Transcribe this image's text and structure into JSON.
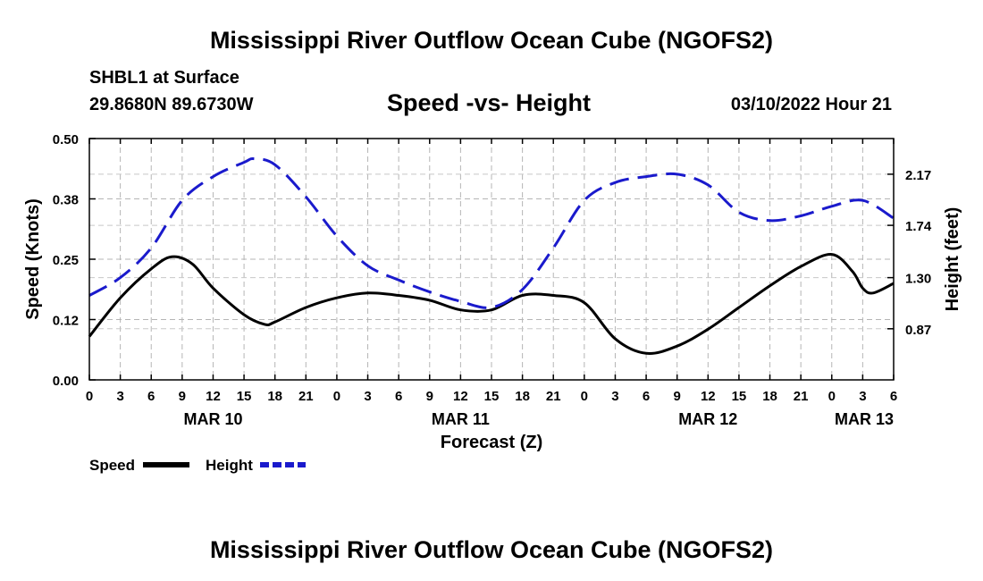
{
  "header": {
    "title": "Mississippi River Outflow Ocean Cube (NGOFS2)",
    "station": "SHBL1 at Surface",
    "location": "29.8680N  89.6730W",
    "subtitle": "Speed -vs- Height",
    "timestamp": "03/10/2022 Hour 21"
  },
  "footer": {
    "title": "Mississippi River Outflow Ocean Cube (NGOFS2)"
  },
  "chart_data": {
    "type": "line",
    "xlabel": "Forecast (Z)",
    "ylabel": "Speed (Knots)",
    "y2label": "Height (feet)",
    "x_unit": "hours since 03/10 00Z",
    "xlim": [
      0,
      78
    ],
    "ylim": [
      0,
      0.5
    ],
    "y2lim": [
      0.44,
      2.47
    ],
    "x_ticks": [
      0,
      3,
      6,
      9,
      12,
      15,
      18,
      21,
      24,
      27,
      30,
      33,
      36,
      39,
      42,
      45,
      48,
      51,
      54,
      57,
      60,
      63,
      66,
      69,
      72,
      75,
      78
    ],
    "x_tick_labels": [
      "0",
      "3",
      "6",
      "9",
      "12",
      "15",
      "18",
      "21",
      "0",
      "3",
      "6",
      "9",
      "12",
      "15",
      "18",
      "21",
      "0",
      "3",
      "6",
      "9",
      "12",
      "15",
      "18",
      "21",
      "0",
      "3",
      "6"
    ],
    "date_labels": [
      {
        "x": 12,
        "label": "MAR 10"
      },
      {
        "x": 36,
        "label": "MAR 11"
      },
      {
        "x": 60,
        "label": "MAR 12"
      },
      {
        "x": 78,
        "label": "MAR 13"
      }
    ],
    "y_ticks": [
      0,
      0.125,
      0.25,
      0.375,
      0.5
    ],
    "y_tick_labels": [
      "0.00",
      "0.12",
      "0.25",
      "0.38",
      "0.50"
    ],
    "y2_ticks": [
      0.87,
      1.3,
      1.74,
      2.17
    ],
    "y2_tick_labels": [
      "0.87",
      "1.30",
      "1.74",
      "2.17"
    ],
    "grid": true,
    "legend_position": "bottom-left",
    "series": [
      {
        "name": "Speed",
        "axis": "left",
        "color": "#000000",
        "style": "solid",
        "x": [
          0,
          3,
          6,
          8,
          10,
          12,
          15,
          17,
          18,
          21,
          24,
          27,
          30,
          33,
          36,
          39,
          42,
          45,
          48,
          51,
          54,
          57,
          60,
          63,
          66,
          69,
          72,
          74,
          75,
          76,
          78
        ],
        "values": [
          0.09,
          0.17,
          0.23,
          0.255,
          0.24,
          0.19,
          0.135,
          0.115,
          0.12,
          0.15,
          0.17,
          0.18,
          0.175,
          0.165,
          0.145,
          0.145,
          0.175,
          0.175,
          0.16,
          0.085,
          0.055,
          0.07,
          0.105,
          0.15,
          0.195,
          0.235,
          0.26,
          0.225,
          0.19,
          0.18,
          0.2
        ]
      },
      {
        "name": "Height",
        "axis": "right",
        "color": "#1a1acc",
        "style": "dashed",
        "x": [
          0,
          3,
          6,
          9,
          12,
          15,
          16,
          18,
          21,
          24,
          27,
          30,
          33,
          36,
          39,
          42,
          45,
          48,
          51,
          54,
          57,
          60,
          63,
          66,
          69,
          72,
          75,
          78
        ],
        "values": [
          1.15,
          1.3,
          1.55,
          1.95,
          2.15,
          2.27,
          2.3,
          2.25,
          1.98,
          1.65,
          1.4,
          1.28,
          1.18,
          1.1,
          1.05,
          1.2,
          1.55,
          1.95,
          2.1,
          2.15,
          2.17,
          2.08,
          1.85,
          1.78,
          1.82,
          1.9,
          1.95,
          1.8
        ]
      }
    ]
  }
}
